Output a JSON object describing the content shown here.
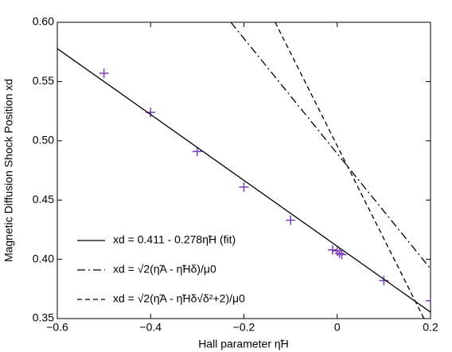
{
  "chart_data": {
    "type": "scatter",
    "xlabel": "Hall parameter η̃H",
    "ylabel": "Magnetic Diffusion Shock Position xd",
    "xlim": [
      -0.6,
      0.2
    ],
    "ylim": [
      0.35,
      0.6
    ],
    "xticks": [
      {
        "value": -0.6,
        "label": "−0.6"
      },
      {
        "value": -0.4,
        "label": "−0.4"
      },
      {
        "value": -0.2,
        "label": "−0.2"
      },
      0,
      0.2
    ],
    "yticks": [
      0.35,
      {
        "value": 0.4,
        "label": "0.40"
      },
      0.45,
      {
        "value": 0.5,
        "label": "0.50"
      },
      0.55,
      {
        "value": 0.6,
        "label": "0.60"
      }
    ],
    "series": [
      {
        "kind": "scatter",
        "color": "#7b3fb8",
        "x": [
          -0.5,
          -0.4,
          -0.3,
          -0.2,
          -0.1,
          -0.01,
          0,
          0.005,
          0.01,
          0.1,
          0.2
        ],
        "values": [
          0.557,
          0.524,
          0.491,
          0.461,
          0.433,
          0.408,
          0.407,
          0.405,
          0.404,
          0.382,
          0.365
        ]
      },
      {
        "kind": "line",
        "name": "xd = 0.411 - 0.278η̃H (fit)",
        "color": "#000000",
        "dash": "solid",
        "x": [
          -0.6,
          0.2
        ],
        "values": [
          0.5778,
          0.3554
        ]
      },
      {
        "kind": "line",
        "name": "xd = √2(η̃A - η̃Hδ)/μ0",
        "color": "#000000",
        "dash": "dashdot",
        "x": [
          -0.228,
          0.2
        ],
        "values": [
          0.6,
          0.392
        ]
      },
      {
        "kind": "line",
        "name": "xd = √2(η̃A - η̃Hδ√δ²+2)/μ0",
        "color": "#000000",
        "dash": "dashed",
        "x": [
          -0.133,
          0.186
        ],
        "values": [
          0.6,
          0.35
        ]
      }
    ]
  }
}
